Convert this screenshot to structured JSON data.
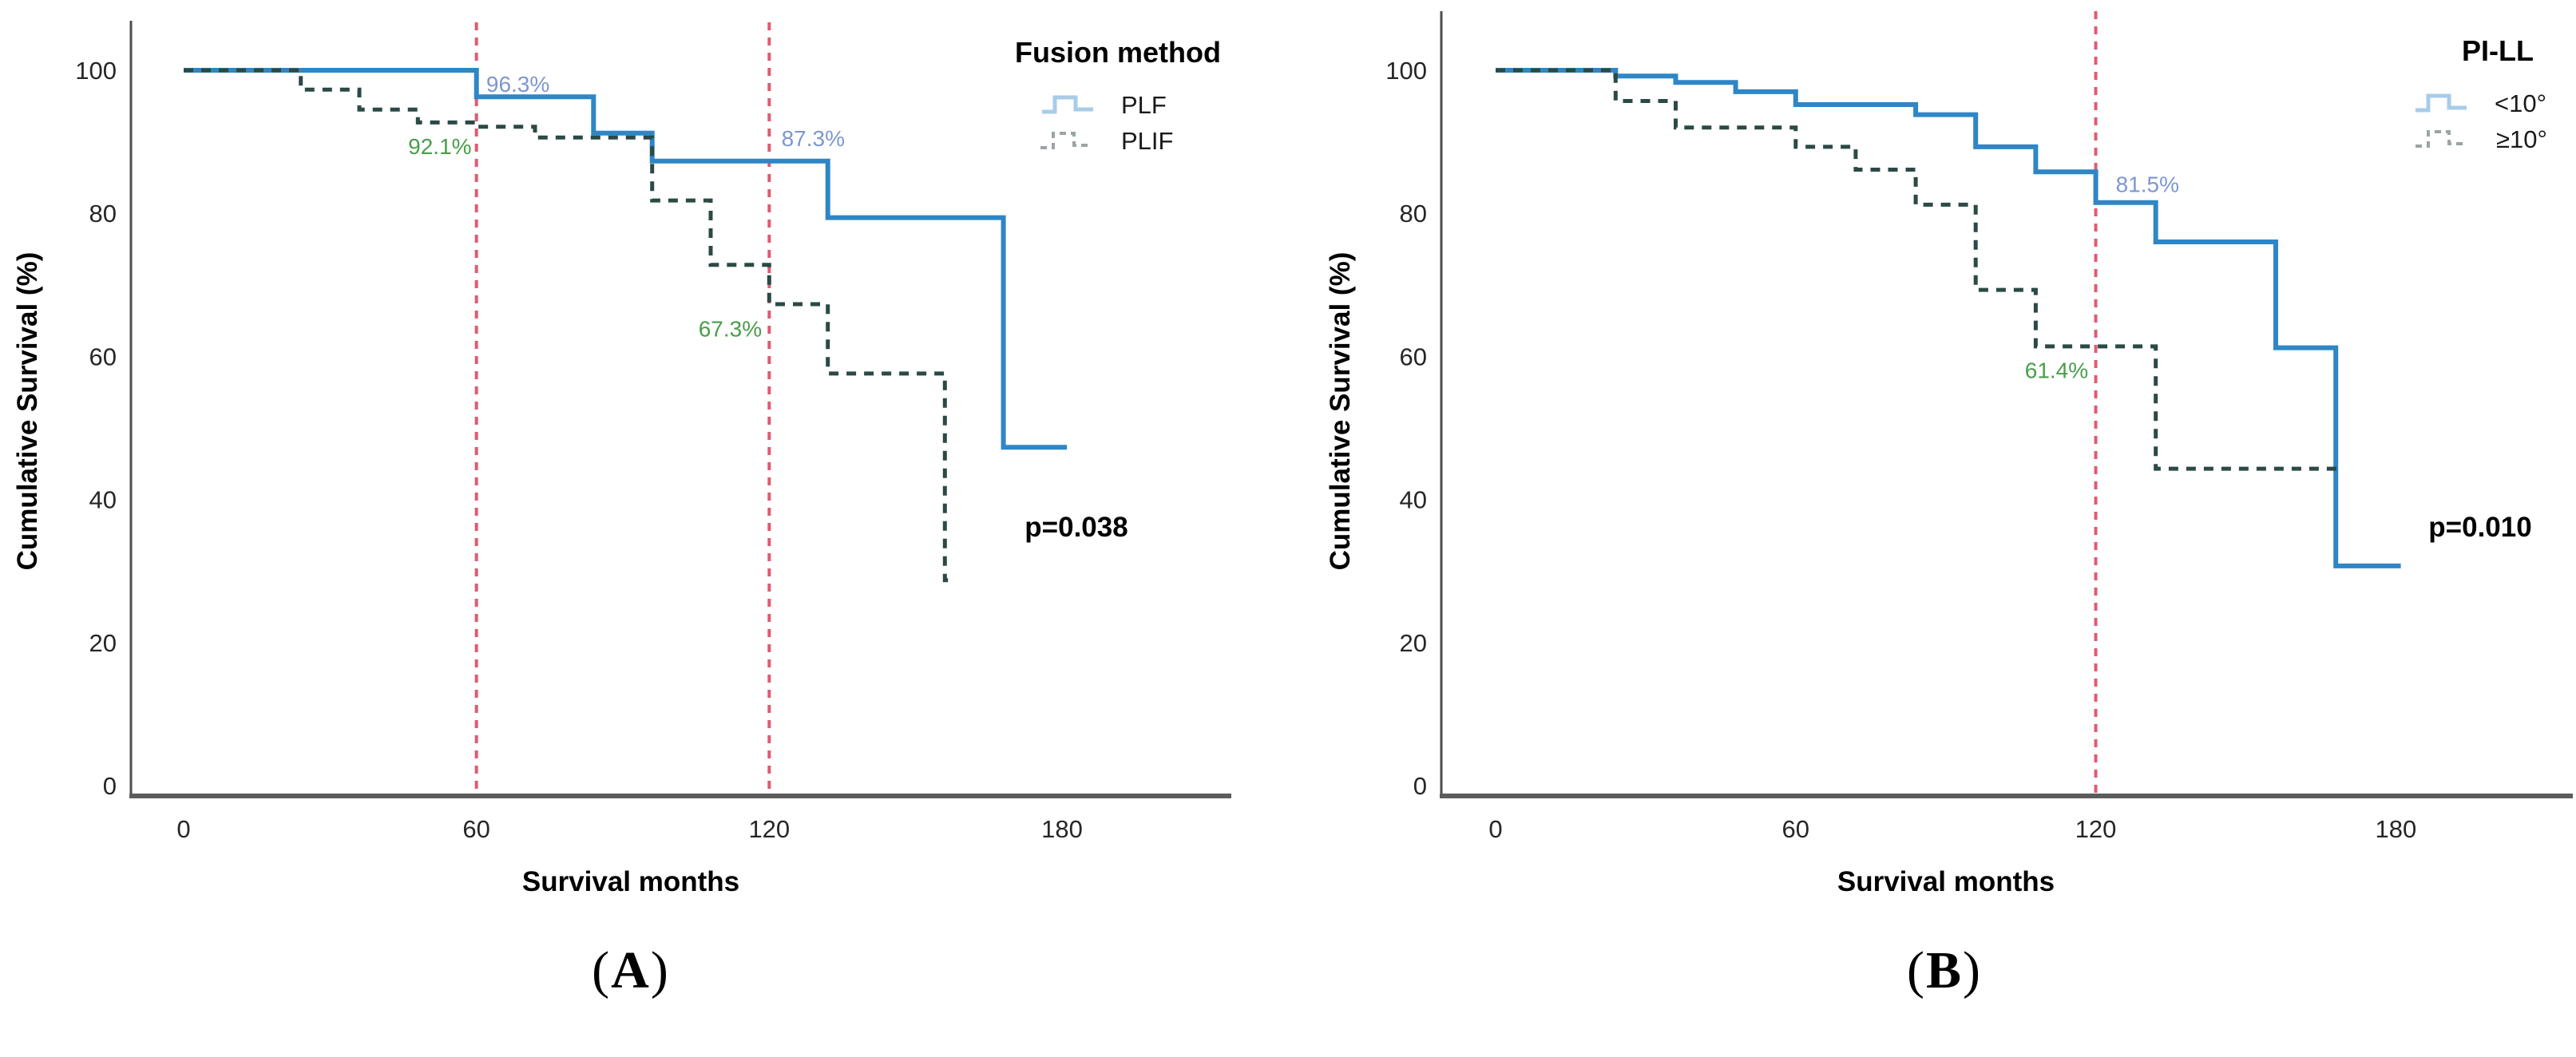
{
  "figure": {
    "captions": [
      {
        "open": "(",
        "letter": "A",
        "close": ")"
      },
      {
        "open": "(",
        "letter": "B",
        "close": ")"
      }
    ],
    "colors": {
      "curve_solid": "#2e86c6",
      "curve_dashed": "#2b4a45",
      "reference_line": "#e05a70",
      "annotation_blue": "#7d97d0",
      "annotation_green": "#4a9d4a",
      "legend_swatch_solid": "#a8cce8",
      "legend_swatch_dashed": "#9aa5a5",
      "axis_line": "#4d4d4d",
      "baseline": "#5c5c5c",
      "tick_text": "#262626",
      "label_text": "#000000"
    }
  },
  "chart_data": [
    {
      "type": "line",
      "subtype": "kaplan-meier-step",
      "panel_label": "A",
      "legend_title": "Fusion method",
      "legend_position": "top-right",
      "xlabel": "Survival months",
      "ylabel": "Cumulative Survival (%)",
      "xticks": [
        0,
        60,
        120,
        180
      ],
      "yticks": [
        0,
        20,
        40,
        60,
        80,
        100
      ],
      "xlim": [
        0,
        200
      ],
      "ylim": [
        0,
        100
      ],
      "grid": false,
      "reference_lines_x": [
        60,
        120
      ],
      "p_value": "p=0.038",
      "series": [
        {
          "name": "PLF",
          "style": "solid",
          "points": [
            [
              0,
              100
            ],
            [
              60,
              100
            ],
            [
              60,
              96.3
            ],
            [
              84,
              96.3
            ],
            [
              84,
              91.2
            ],
            [
              96,
              91.2
            ],
            [
              96,
              87.3
            ],
            [
              132,
              87.3
            ],
            [
              132,
              79.4
            ],
            [
              168,
              79.4
            ],
            [
              168,
              47.3
            ],
            [
              181,
              47.3
            ]
          ]
        },
        {
          "name": "PLIF",
          "style": "dashed",
          "points": [
            [
              0,
              100
            ],
            [
              24,
              100
            ],
            [
              24,
              97.3
            ],
            [
              36,
              97.3
            ],
            [
              36,
              94.5
            ],
            [
              48,
              94.5
            ],
            [
              48,
              92.7
            ],
            [
              60,
              92.7
            ],
            [
              60,
              92.1
            ],
            [
              72,
              92.1
            ],
            [
              72,
              90.6
            ],
            [
              96,
              90.6
            ],
            [
              96,
              81.8
            ],
            [
              108,
              81.8
            ],
            [
              108,
              72.8
            ],
            [
              120,
              72.8
            ],
            [
              120,
              67.3
            ],
            [
              132,
              67.3
            ],
            [
              132,
              57.6
            ],
            [
              156,
              57.6
            ],
            [
              156,
              28.7
            ],
            [
              158,
              28.7
            ]
          ]
        }
      ],
      "annotations": [
        {
          "text": "96.3%",
          "x": 62,
          "y": 97.0,
          "color": "blue",
          "anchor": "start"
        },
        {
          "text": "92.1%",
          "x": 59,
          "y": 88.3,
          "color": "green",
          "anchor": "end"
        },
        {
          "text": "87.3%",
          "x": 122.5,
          "y": 89.4,
          "color": "blue",
          "anchor": "start"
        },
        {
          "text": "67.3%",
          "x": 118.5,
          "y": 62.8,
          "color": "green",
          "anchor": "end"
        }
      ]
    },
    {
      "type": "line",
      "subtype": "kaplan-meier-step",
      "panel_label": "B",
      "legend_title": "PI-LL",
      "legend_position": "top-right",
      "xlabel": "Survival months",
      "ylabel": "Cumulative Survival (%)",
      "xticks": [
        0,
        60,
        120,
        180
      ],
      "yticks": [
        0,
        20,
        40,
        60,
        80,
        100
      ],
      "xlim": [
        0,
        200
      ],
      "ylim": [
        0,
        100
      ],
      "grid": false,
      "reference_lines_x": [
        120
      ],
      "p_value": "p=0.010",
      "series": [
        {
          "name": "<10°",
          "style": "solid",
          "points": [
            [
              0,
              100
            ],
            [
              24,
              100
            ],
            [
              24,
              99.2
            ],
            [
              36,
              99.2
            ],
            [
              36,
              98.3
            ],
            [
              48,
              98.3
            ],
            [
              48,
              97.0
            ],
            [
              60,
              97.0
            ],
            [
              60,
              95.2
            ],
            [
              84,
              95.2
            ],
            [
              84,
              93.8
            ],
            [
              96,
              93.8
            ],
            [
              96,
              89.3
            ],
            [
              108,
              89.3
            ],
            [
              108,
              85.8
            ],
            [
              120,
              85.8
            ],
            [
              120,
              81.5
            ],
            [
              132,
              81.5
            ],
            [
              132,
              76.0
            ],
            [
              156,
              76.0
            ],
            [
              156,
              61.2
            ],
            [
              168,
              61.2
            ],
            [
              168,
              30.7
            ],
            [
              181,
              30.7
            ]
          ]
        },
        {
          "name": "≥10°",
          "style": "dashed",
          "points": [
            [
              0,
              100
            ],
            [
              24,
              100
            ],
            [
              24,
              95.7
            ],
            [
              36,
              95.7
            ],
            [
              36,
              92.0
            ],
            [
              60,
              92.0
            ],
            [
              60,
              89.3
            ],
            [
              72,
              89.3
            ],
            [
              72,
              86.1
            ],
            [
              84,
              86.1
            ],
            [
              84,
              81.2
            ],
            [
              96,
              81.2
            ],
            [
              96,
              69.3
            ],
            [
              108,
              69.3
            ],
            [
              108,
              61.4
            ],
            [
              132,
              61.4
            ],
            [
              132,
              44.3
            ],
            [
              168.5,
              44.3
            ]
          ]
        }
      ],
      "annotations": [
        {
          "text": "81.5%",
          "x": 124,
          "y": 83.0,
          "color": "blue",
          "anchor": "start"
        },
        {
          "text": "61.4%",
          "x": 118.5,
          "y": 57.0,
          "color": "green",
          "anchor": "end"
        }
      ]
    }
  ]
}
